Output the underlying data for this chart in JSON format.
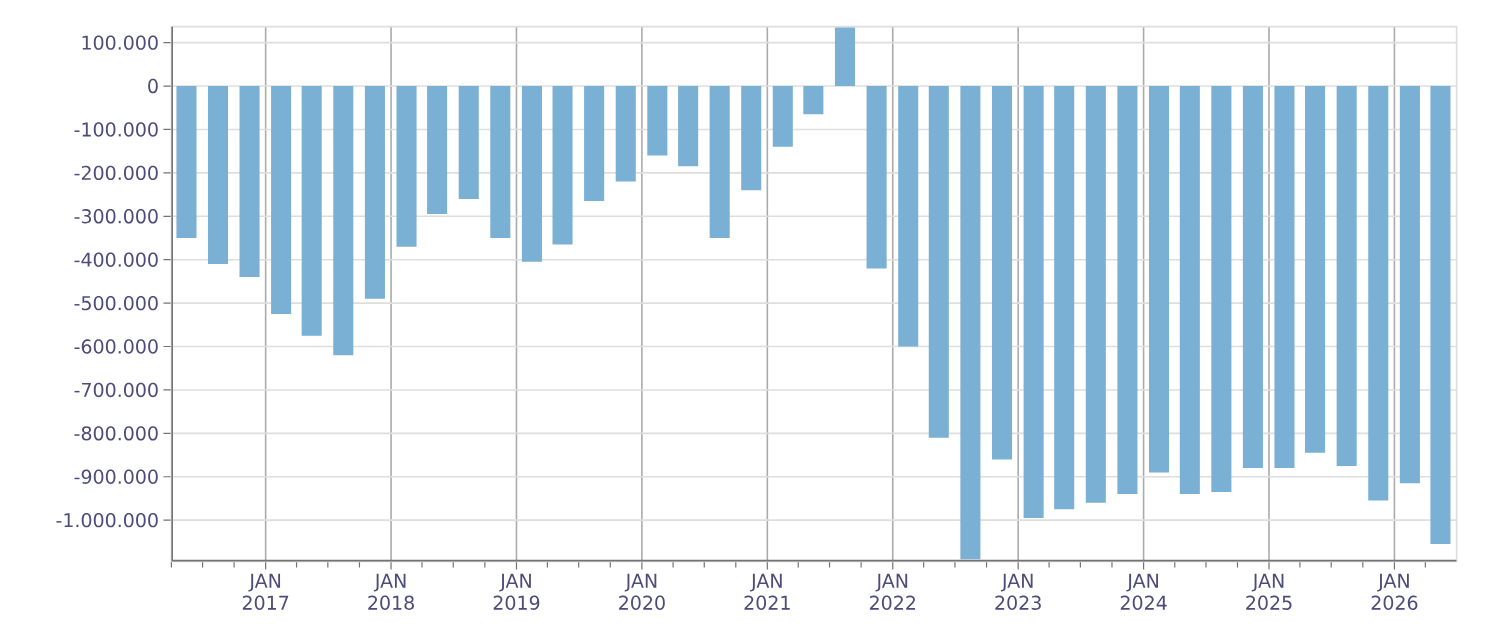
{
  "chart_data": {
    "type": "bar",
    "color": "#79b0d3",
    "x": [
      "2016-05-15",
      "2016-08-15",
      "2016-11-15",
      "2017-02-15",
      "2017-05-15",
      "2017-08-15",
      "2017-11-15",
      "2018-02-15",
      "2018-05-15",
      "2018-08-15",
      "2018-11-15",
      "2019-02-15",
      "2019-05-15",
      "2019-08-15",
      "2019-11-15",
      "2020-02-15",
      "2020-05-15",
      "2020-08-15",
      "2020-11-15",
      "2021-02-15",
      "2021-05-15",
      "2021-08-15",
      "2021-11-15",
      "2022-02-15",
      "2022-05-15",
      "2022-08-15",
      "2022-11-15",
      "2023-02-15",
      "2023-05-15",
      "2023-08-15",
      "2023-11-15",
      "2024-02-15",
      "2024-05-15",
      "2024-08-15",
      "2024-11-15",
      "2025-02-15",
      "2025-05-15",
      "2025-08-15",
      "2025-11-15",
      "2026-02-15",
      "2026-05-15"
    ],
    "values": [
      -350000,
      -410000,
      -440000,
      -525000,
      -575000,
      -620000,
      -490000,
      -370000,
      -295000,
      -260000,
      -350000,
      -405000,
      -365000,
      -265000,
      -220000,
      -160000,
      -185000,
      -350000,
      -240000,
      -140000,
      -65000,
      135000,
      -420000,
      -600000,
      -810000,
      -1090000,
      -860000,
      -995000,
      -975000,
      -960000,
      -940000,
      -890000,
      -940000,
      -935000,
      -880000,
      -880000,
      -845000,
      -875000,
      -955000,
      -915000,
      -1055000
    ],
    "xlim": [
      "2016-04-01",
      "2026-07-01"
    ],
    "ylim": [
      -1095000,
      137000
    ],
    "xticks": [
      {
        "value": "2016-04-01",
        "label": null
      },
      {
        "value": "2016-07-01",
        "label": null
      },
      {
        "value": "2016-10-01",
        "label": null
      },
      {
        "value": "2017-01-01",
        "label": "JAN 2017"
      },
      {
        "value": "2017-04-01",
        "label": null
      },
      {
        "value": "2017-07-01",
        "label": null
      },
      {
        "value": "2017-10-01",
        "label": null
      },
      {
        "value": "2018-01-01",
        "label": "JAN 2018"
      },
      {
        "value": "2018-04-01",
        "label": null
      },
      {
        "value": "2018-07-01",
        "label": null
      },
      {
        "value": "2018-10-01",
        "label": null
      },
      {
        "value": "2019-01-01",
        "label": "JAN 2019"
      },
      {
        "value": "2019-04-01",
        "label": null
      },
      {
        "value": "2019-07-01",
        "label": null
      },
      {
        "value": "2019-10-01",
        "label": null
      },
      {
        "value": "2020-01-01",
        "label": "JAN 2020"
      },
      {
        "value": "2020-04-01",
        "label": null
      },
      {
        "value": "2020-07-01",
        "label": null
      },
      {
        "value": "2020-10-01",
        "label": null
      },
      {
        "value": "2021-01-01",
        "label": "JAN 2021"
      },
      {
        "value": "2021-04-01",
        "label": null
      },
      {
        "value": "2021-07-01",
        "label": null
      },
      {
        "value": "2021-10-01",
        "label": null
      },
      {
        "value": "2022-01-01",
        "label": "JAN 2022"
      },
      {
        "value": "2022-04-01",
        "label": null
      },
      {
        "value": "2022-07-01",
        "label": null
      },
      {
        "value": "2022-10-01",
        "label": null
      },
      {
        "value": "2023-01-01",
        "label": "JAN 2023"
      },
      {
        "value": "2023-04-01",
        "label": null
      },
      {
        "value": "2023-07-01",
        "label": null
      },
      {
        "value": "2023-10-01",
        "label": null
      },
      {
        "value": "2024-01-01",
        "label": "JAN 2024"
      },
      {
        "value": "2024-04-01",
        "label": null
      },
      {
        "value": "2024-07-01",
        "label": null
      },
      {
        "value": "2024-10-01",
        "label": null
      },
      {
        "value": "2025-01-01",
        "label": "JAN 2025"
      },
      {
        "value": "2025-04-01",
        "label": null
      },
      {
        "value": "2025-07-01",
        "label": null
      },
      {
        "value": "2025-10-01",
        "label": null
      },
      {
        "value": "2026-01-01",
        "label": "JAN 2026"
      },
      {
        "value": "2026-04-01",
        "label": null
      }
    ],
    "yticks": [
      {
        "value": 100000,
        "label": "100.000"
      },
      0,
      {
        "value": -100000,
        "label": "-100.000"
      },
      {
        "value": -200000,
        "label": "-200.000"
      },
      {
        "value": -300000,
        "label": "-300.000"
      },
      {
        "value": -400000,
        "label": "-400.000"
      },
      {
        "value": -500000,
        "label": "-500.000"
      },
      {
        "value": -600000,
        "label": "-600.000"
      },
      {
        "value": -700000,
        "label": "-700.000"
      },
      {
        "value": -800000,
        "label": "-800.000"
      },
      {
        "value": -900000,
        "label": "-900.000"
      },
      {
        "value": -1000000,
        "label": "-1.000.000"
      }
    ],
    "grid": true
  }
}
